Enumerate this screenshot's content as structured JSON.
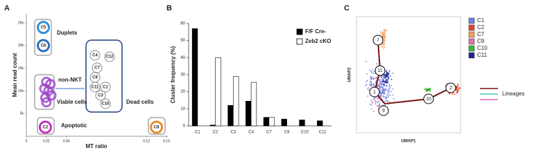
{
  "chart_data": [
    {
      "type": "scatter",
      "panel": "A",
      "xlabel": "MT ratio",
      "ylabel": "Mean read count",
      "xlim": [
        0,
        0.14
      ],
      "ylim": [
        0,
        27000
      ],
      "xticks": [
        0,
        0.02,
        0.04,
        0.12,
        0.14
      ],
      "yticks": [
        {
          "value": 5000,
          "label": "5k"
        },
        {
          "value": 10000,
          "label": "10k"
        },
        {
          "value": 15000,
          "label": "15k"
        },
        {
          "value": 20000,
          "label": "20k"
        },
        {
          "value": 25000,
          "label": "25k"
        }
      ],
      "points": [
        {
          "label": "C5",
          "x": 0.017,
          "y": 24000,
          "color": "#2f8fd8"
        },
        {
          "label": "C6",
          "x": 0.017,
          "y": 20000,
          "color": "#2d6fc0"
        },
        {
          "label": "C2",
          "x": 0.019,
          "y": 2000,
          "color": "#c42fc0"
        },
        {
          "label": "C8",
          "x": 0.13,
          "y": 2000,
          "color": "#e88a2a"
        }
      ],
      "cluster_points": {
        "color": "#9b3fc8",
        "x": [
          0.02,
          0.024,
          0.018,
          0.022,
          0.019,
          0.025,
          0.02
        ],
        "y": [
          12000,
          11500,
          10500,
          10000,
          8500,
          9000,
          7500
        ]
      },
      "annotations": [
        "Duplets",
        "non-NKT",
        "Viable cells",
        "Apoptotic",
        "Dead cells"
      ],
      "inset_labels": [
        "C4",
        "C12",
        "C7",
        "C9",
        "C11",
        "C1",
        "C3",
        "C10"
      ]
    },
    {
      "type": "bar",
      "panel": "B",
      "ylabel": "Cluster frequency (%)",
      "categories": [
        "C1",
        "C2",
        "C3",
        "C4",
        "C7",
        "C9",
        "C10",
        "C11"
      ],
      "series": [
        {
          "name": "F/F Cre-",
          "color": "#000000",
          "values": [
            57,
            0.5,
            12,
            14.5,
            5,
            4,
            3.5,
            3
          ]
        },
        {
          "name": "Zeb2 cKO",
          "color": "#ffffff",
          "values": [
            0,
            40,
            29,
            25.5,
            5,
            0,
            0,
            0
          ]
        }
      ],
      "ylim": [
        0,
        60
      ],
      "yticks": [
        0,
        10,
        20,
        30,
        40,
        50,
        60
      ],
      "legend": "upper-right"
    },
    {
      "type": "umap",
      "panel": "C",
      "xlabel": "UMAP1",
      "ylabel": "UMAP2",
      "clusters": [
        {
          "name": "C1",
          "color": "#6b82e0"
        },
        {
          "name": "C2",
          "color": "#e0452c"
        },
        {
          "name": "C7",
          "color": "#f0a060"
        },
        {
          "name": "C9",
          "color": "#e070b0"
        },
        {
          "name": "C10",
          "color": "#3cb83c"
        },
        {
          "name": "C11",
          "color": "#1c2a8c"
        }
      ],
      "nodes": [
        "7",
        "11",
        "1",
        "9",
        "10",
        "2"
      ],
      "lineage_label": "Lineages",
      "lineage_colors": [
        "#7a1010",
        "#40c8c0",
        "#e060a0"
      ]
    }
  ]
}
